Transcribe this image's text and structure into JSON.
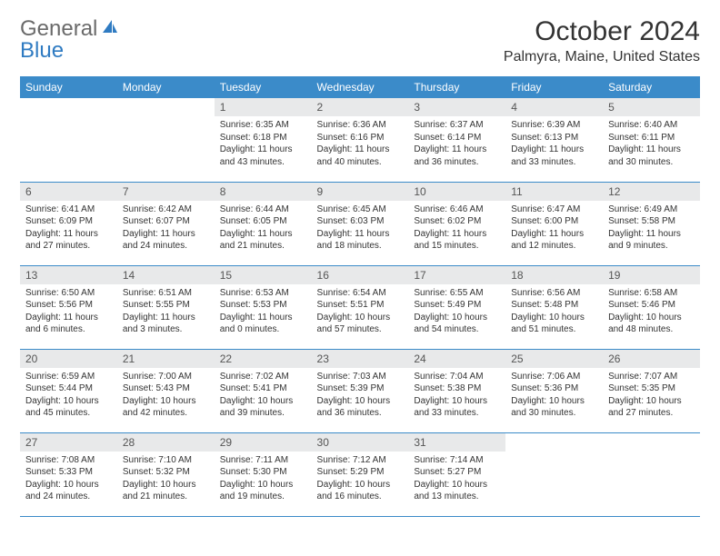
{
  "logo": {
    "part1": "General",
    "part2": "Blue"
  },
  "title": "October 2024",
  "location": "Palmyra, Maine, United States",
  "colors": {
    "header_bg": "#3b8bc9",
    "header_text": "#ffffff",
    "daynum_bg": "#e8e9ea",
    "row_border": "#3b8bc9",
    "logo_gray": "#6a6a6a",
    "logo_blue": "#2f7bc2"
  },
  "day_labels": [
    "Sunday",
    "Monday",
    "Tuesday",
    "Wednesday",
    "Thursday",
    "Friday",
    "Saturday"
  ],
  "weeks": [
    [
      null,
      null,
      {
        "n": "1",
        "sr": "6:35 AM",
        "ss": "6:18 PM",
        "dl": "11 hours and 43 minutes."
      },
      {
        "n": "2",
        "sr": "6:36 AM",
        "ss": "6:16 PM",
        "dl": "11 hours and 40 minutes."
      },
      {
        "n": "3",
        "sr": "6:37 AM",
        "ss": "6:14 PM",
        "dl": "11 hours and 36 minutes."
      },
      {
        "n": "4",
        "sr": "6:39 AM",
        "ss": "6:13 PM",
        "dl": "11 hours and 33 minutes."
      },
      {
        "n": "5",
        "sr": "6:40 AM",
        "ss": "6:11 PM",
        "dl": "11 hours and 30 minutes."
      }
    ],
    [
      {
        "n": "6",
        "sr": "6:41 AM",
        "ss": "6:09 PM",
        "dl": "11 hours and 27 minutes."
      },
      {
        "n": "7",
        "sr": "6:42 AM",
        "ss": "6:07 PM",
        "dl": "11 hours and 24 minutes."
      },
      {
        "n": "8",
        "sr": "6:44 AM",
        "ss": "6:05 PM",
        "dl": "11 hours and 21 minutes."
      },
      {
        "n": "9",
        "sr": "6:45 AM",
        "ss": "6:03 PM",
        "dl": "11 hours and 18 minutes."
      },
      {
        "n": "10",
        "sr": "6:46 AM",
        "ss": "6:02 PM",
        "dl": "11 hours and 15 minutes."
      },
      {
        "n": "11",
        "sr": "6:47 AM",
        "ss": "6:00 PM",
        "dl": "11 hours and 12 minutes."
      },
      {
        "n": "12",
        "sr": "6:49 AM",
        "ss": "5:58 PM",
        "dl": "11 hours and 9 minutes."
      }
    ],
    [
      {
        "n": "13",
        "sr": "6:50 AM",
        "ss": "5:56 PM",
        "dl": "11 hours and 6 minutes."
      },
      {
        "n": "14",
        "sr": "6:51 AM",
        "ss": "5:55 PM",
        "dl": "11 hours and 3 minutes."
      },
      {
        "n": "15",
        "sr": "6:53 AM",
        "ss": "5:53 PM",
        "dl": "11 hours and 0 minutes."
      },
      {
        "n": "16",
        "sr": "6:54 AM",
        "ss": "5:51 PM",
        "dl": "10 hours and 57 minutes."
      },
      {
        "n": "17",
        "sr": "6:55 AM",
        "ss": "5:49 PM",
        "dl": "10 hours and 54 minutes."
      },
      {
        "n": "18",
        "sr": "6:56 AM",
        "ss": "5:48 PM",
        "dl": "10 hours and 51 minutes."
      },
      {
        "n": "19",
        "sr": "6:58 AM",
        "ss": "5:46 PM",
        "dl": "10 hours and 48 minutes."
      }
    ],
    [
      {
        "n": "20",
        "sr": "6:59 AM",
        "ss": "5:44 PM",
        "dl": "10 hours and 45 minutes."
      },
      {
        "n": "21",
        "sr": "7:00 AM",
        "ss": "5:43 PM",
        "dl": "10 hours and 42 minutes."
      },
      {
        "n": "22",
        "sr": "7:02 AM",
        "ss": "5:41 PM",
        "dl": "10 hours and 39 minutes."
      },
      {
        "n": "23",
        "sr": "7:03 AM",
        "ss": "5:39 PM",
        "dl": "10 hours and 36 minutes."
      },
      {
        "n": "24",
        "sr": "7:04 AM",
        "ss": "5:38 PM",
        "dl": "10 hours and 33 minutes."
      },
      {
        "n": "25",
        "sr": "7:06 AM",
        "ss": "5:36 PM",
        "dl": "10 hours and 30 minutes."
      },
      {
        "n": "26",
        "sr": "7:07 AM",
        "ss": "5:35 PM",
        "dl": "10 hours and 27 minutes."
      }
    ],
    [
      {
        "n": "27",
        "sr": "7:08 AM",
        "ss": "5:33 PM",
        "dl": "10 hours and 24 minutes."
      },
      {
        "n": "28",
        "sr": "7:10 AM",
        "ss": "5:32 PM",
        "dl": "10 hours and 21 minutes."
      },
      {
        "n": "29",
        "sr": "7:11 AM",
        "ss": "5:30 PM",
        "dl": "10 hours and 19 minutes."
      },
      {
        "n": "30",
        "sr": "7:12 AM",
        "ss": "5:29 PM",
        "dl": "10 hours and 16 minutes."
      },
      {
        "n": "31",
        "sr": "7:14 AM",
        "ss": "5:27 PM",
        "dl": "10 hours and 13 minutes."
      },
      null,
      null
    ]
  ],
  "labels": {
    "sunrise": "Sunrise:",
    "sunset": "Sunset:",
    "daylight": "Daylight:"
  }
}
